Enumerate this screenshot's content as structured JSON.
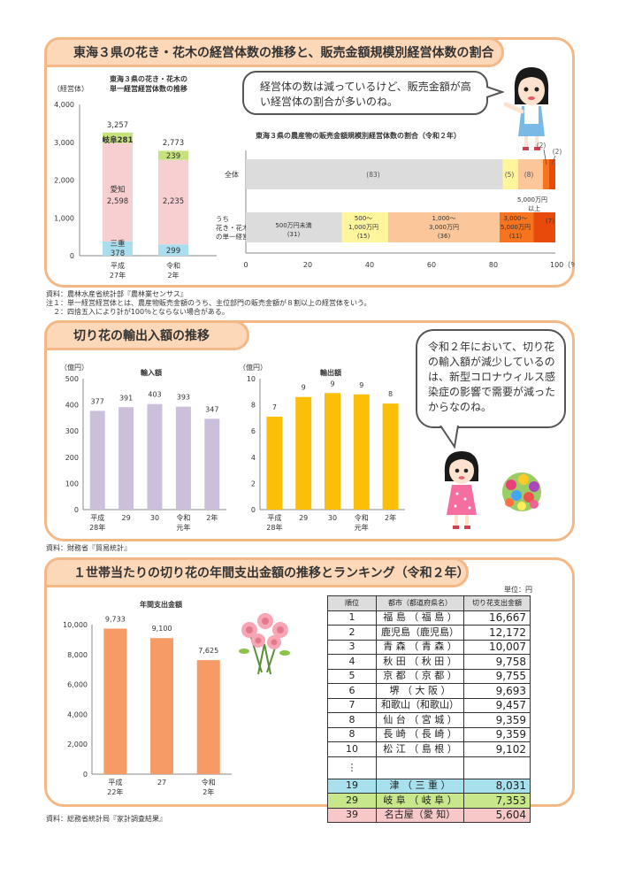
{
  "section1": {
    "title": "東海３県の花き・花木の経営体数の推移と、販売金額規模別経営体数の割合",
    "bubble": "経営体の数は減っているけど、販売金額が高い経営体の割合が多いのね。",
    "stack_chart": {
      "title_line1": "東海３県の花き・花木の",
      "title_line2": "単一経営経営体数の推移",
      "unit": "（経営体）",
      "y_ticks": [
        "4,000",
        "3,000",
        "2,000",
        "1,000",
        "0"
      ],
      "cat1_line1": "平成",
      "cat1_line2": "27年",
      "cat2_line1": "令和",
      "cat2_line2": "2年",
      "total1": "3,257",
      "total2": "2,773",
      "gifu_label": "岐阜",
      "gifu1": "281",
      "gifu2": "239",
      "aichi_label": "愛知",
      "aichi1": "2,598",
      "aichi2": "2,235",
      "mie_label": "三重",
      "mie1": "378",
      "mie2": "299"
    },
    "share_chart": {
      "title": "東海３県の農産物の販売金額規模別経営体数の割合（令和２年）",
      "row1_label": "全体",
      "row2_line1": "うち",
      "row2_line2": "花き・花木",
      "row2_line3": "の単一経営",
      "all_83": "(83)",
      "all_5": "(5)",
      "all_8": "(8)",
      "all_2a": "(2)",
      "all_2b": "(2)",
      "f_s1_line1": "500万円未満",
      "f_s1_line2": "(31)",
      "f_s2_line1": "500～",
      "f_s2_line2": "1,000万円",
      "f_s2_line3": "(15)",
      "f_s3_line1": "1,000～",
      "f_s3_line2": "3,000万円",
      "f_s3_line3": "(36)",
      "f_s4_line1": "3,000～",
      "f_s4_line2": "5,000万円",
      "f_s4_line3": "(11)",
      "f_s5_line1": "5,000万円",
      "f_s5_line2": "以上",
      "f_s5_val": "(7)",
      "x_ticks": [
        "0",
        "20",
        "40",
        "60",
        "80",
        "100（％）"
      ]
    },
    "notes": [
      "資料：農林水産省統計部『農林業センサス』",
      "注１：単一経営経営体とは、農産物販売金額のうち、主位部門の販売金額が８割以上の経営体をいう。",
      "　２：四捨五入により計が100％とならない場合がある。"
    ]
  },
  "section2": {
    "title": "切り花の輸出入額の推移",
    "bubble": "令和２年において、切り花の輸入額が減少しているのは、新型コロナウィルス感染症の影響で需要が減ったからなのね。",
    "source": "資料：財務省『貿易統計』",
    "unit": "（億円）",
    "cats": [
      {
        "l1": "平成",
        "l2": "28年"
      },
      {
        "l1": "29",
        "l2": ""
      },
      {
        "l1": "30",
        "l2": ""
      },
      {
        "l1": "令和",
        "l2": "元年"
      },
      {
        "l1": "2年",
        "l2": ""
      }
    ]
  },
  "section3": {
    "title": "１世帯当たりの切り花の年間支出金額の推移とランキング（令和２年）",
    "source": "資料：総務省統計局『家計調査結果』",
    "unit_label": "単位：円",
    "chart_cats": [
      {
        "l1": "平成",
        "l2": "22年"
      },
      {
        "l1": "27",
        "l2": ""
      },
      {
        "l1": "令和",
        "l2": "2年"
      }
    ],
    "ranking": {
      "headers": [
        "順位",
        "都市（都道府県名）",
        "切り花支出金額"
      ],
      "rows": [
        {
          "rank": "1",
          "city": "福 島 （ 福 島 ）",
          "value": "16,667"
        },
        {
          "rank": "2",
          "city": "鹿児島（鹿児島）",
          "value": "12,172"
        },
        {
          "rank": "3",
          "city": "青 森 （ 青 森 ）",
          "value": "10,007"
        },
        {
          "rank": "4",
          "city": "秋 田 （ 秋 田 ）",
          "value": "9,758"
        },
        {
          "rank": "5",
          "city": "京 都 （ 京 都 ）",
          "value": "9,755"
        },
        {
          "rank": "6",
          "city": "堺 （ 大 阪 ）",
          "value": "9,693"
        },
        {
          "rank": "7",
          "city": "和歌山（和歌山）",
          "value": "9,457"
        },
        {
          "rank": "8",
          "city": "仙 台 （ 宮 城 ）",
          "value": "9,359"
        },
        {
          "rank": "8",
          "city": "長 崎 （ 長 崎 ）",
          "value": "9,359"
        },
        {
          "rank": "10",
          "city": "松 江 （ 島 根 ）",
          "value": "9,102"
        }
      ],
      "ellipsis": "⋮",
      "tsu": {
        "rank": "19",
        "city": "津 （ 三 重 ）",
        "value": "8,031"
      },
      "gifu": {
        "rank": "29",
        "city": "岐 阜 （ 岐 阜 ）",
        "value": "7,353"
      },
      "nagoya": {
        "rank": "39",
        "city": "名古屋（愛 知）",
        "value": "5,604"
      }
    }
  },
  "colors": {
    "panel_border": "#f4b886",
    "tab_fill": "#fcd8b8",
    "import_bar": "#cbbfdc",
    "export_bar": "#fbbf0a",
    "spend_bar": "#f79b66",
    "aichi": "#f8cfd0",
    "gifu": "#c6e27e",
    "mie": "#a9deee"
  },
  "chart_data": [
    {
      "type": "bar",
      "title": "東海３県の花き・花木の単一経営経営体数の推移",
      "ylabel": "（経営体）",
      "categories": [
        "平成27年",
        "令和2年"
      ],
      "series": [
        {
          "name": "三重",
          "values": [
            378,
            299
          ]
        },
        {
          "name": "愛知",
          "values": [
            2598,
            2235
          ]
        },
        {
          "name": "岐阜",
          "values": [
            281,
            239
          ]
        }
      ],
      "totals": [
        3257,
        2773
      ],
      "ylim": [
        0,
        4000
      ],
      "stacked": true
    },
    {
      "type": "bar",
      "title": "東海３県の農産物の販売金額規模別経営体数の割合（令和２年）",
      "orientation": "horizontal",
      "stacked": true,
      "categories": [
        "全体",
        "うち花き・花木の単一経営"
      ],
      "series": [
        {
          "name": "500万円未満",
          "values": [
            83,
            31
          ]
        },
        {
          "name": "500～1,000万円",
          "values": [
            5,
            15
          ]
        },
        {
          "name": "1,000～3,000万円",
          "values": [
            8,
            36
          ]
        },
        {
          "name": "3,000～5,000万円",
          "values": [
            2,
            11
          ]
        },
        {
          "name": "5,000万円以上",
          "values": [
            2,
            7
          ]
        }
      ],
      "xlim": [
        0,
        100
      ]
    },
    {
      "type": "bar",
      "title": "輸入額",
      "ylabel": "（億円）",
      "categories": [
        "平成28年",
        "29",
        "30",
        "令和元年",
        "2年"
      ],
      "values": [
        377,
        391,
        403,
        393,
        347
      ],
      "ylim": [
        0,
        500
      ]
    },
    {
      "type": "bar",
      "title": "輸出額",
      "ylabel": "（億円）",
      "categories": [
        "平成28年",
        "29",
        "30",
        "令和元年",
        "2年"
      ],
      "values": [
        7,
        9,
        9,
        9,
        8
      ],
      "exact": [
        7.1,
        8.6,
        8.9,
        8.8,
        8.1
      ],
      "ylim": [
        0,
        10
      ]
    },
    {
      "type": "bar",
      "title": "年間支出金額",
      "categories": [
        "平成22年",
        "27",
        "令和2年"
      ],
      "values": [
        9733,
        9100,
        7625
      ],
      "ylim": [
        0,
        10000
      ]
    }
  ]
}
